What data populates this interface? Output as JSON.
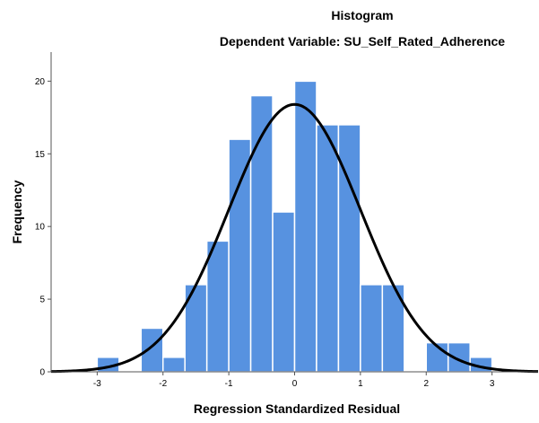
{
  "chart_data": {
    "type": "bar",
    "title": "Histogram",
    "subtitle": "Dependent Variable: SU_Self_Rated_Adherence",
    "xlabel": "Regression Standardized Residual",
    "ylabel": "Frequency",
    "xlim": [
      -3.7,
      3.7
    ],
    "ylim": [
      0,
      22
    ],
    "x_ticks": [
      -3,
      -2,
      -1,
      0,
      1,
      2,
      3
    ],
    "y_ticks": [
      0,
      5,
      10,
      15,
      20
    ],
    "bin_width": 0.3333,
    "bins": [
      {
        "x0": -3.0,
        "x1": -2.6667,
        "count": 1
      },
      {
        "x0": -2.6667,
        "x1": -2.3333,
        "count": 0
      },
      {
        "x0": -2.3333,
        "x1": -2.0,
        "count": 3
      },
      {
        "x0": -2.0,
        "x1": -1.6667,
        "count": 1
      },
      {
        "x0": -1.6667,
        "x1": -1.3333,
        "count": 6
      },
      {
        "x0": -1.3333,
        "x1": -1.0,
        "count": 9
      },
      {
        "x0": -1.0,
        "x1": -0.6667,
        "count": 16
      },
      {
        "x0": -0.6667,
        "x1": -0.3333,
        "count": 19
      },
      {
        "x0": -0.3333,
        "x1": 0.0,
        "count": 11
      },
      {
        "x0": 0.0,
        "x1": 0.3333,
        "count": 20
      },
      {
        "x0": 0.3333,
        "x1": 0.6667,
        "count": 17
      },
      {
        "x0": 0.6667,
        "x1": 1.0,
        "count": 17
      },
      {
        "x0": 1.0,
        "x1": 1.3333,
        "count": 6
      },
      {
        "x0": 1.3333,
        "x1": 1.6667,
        "count": 6
      },
      {
        "x0": 1.6667,
        "x1": 2.0,
        "count": 0
      },
      {
        "x0": 2.0,
        "x1": 2.3333,
        "count": 2
      },
      {
        "x0": 2.3333,
        "x1": 2.6667,
        "count": 2
      },
      {
        "x0": 2.6667,
        "x1": 3.0,
        "count": 1
      }
    ],
    "normal_curve": {
      "mean": 0,
      "sd": 1,
      "peak": 18.4
    },
    "bar_color": "#5792e0",
    "bar_edge_color": "#ffffff",
    "curve_color": "#000000",
    "grid": false
  }
}
